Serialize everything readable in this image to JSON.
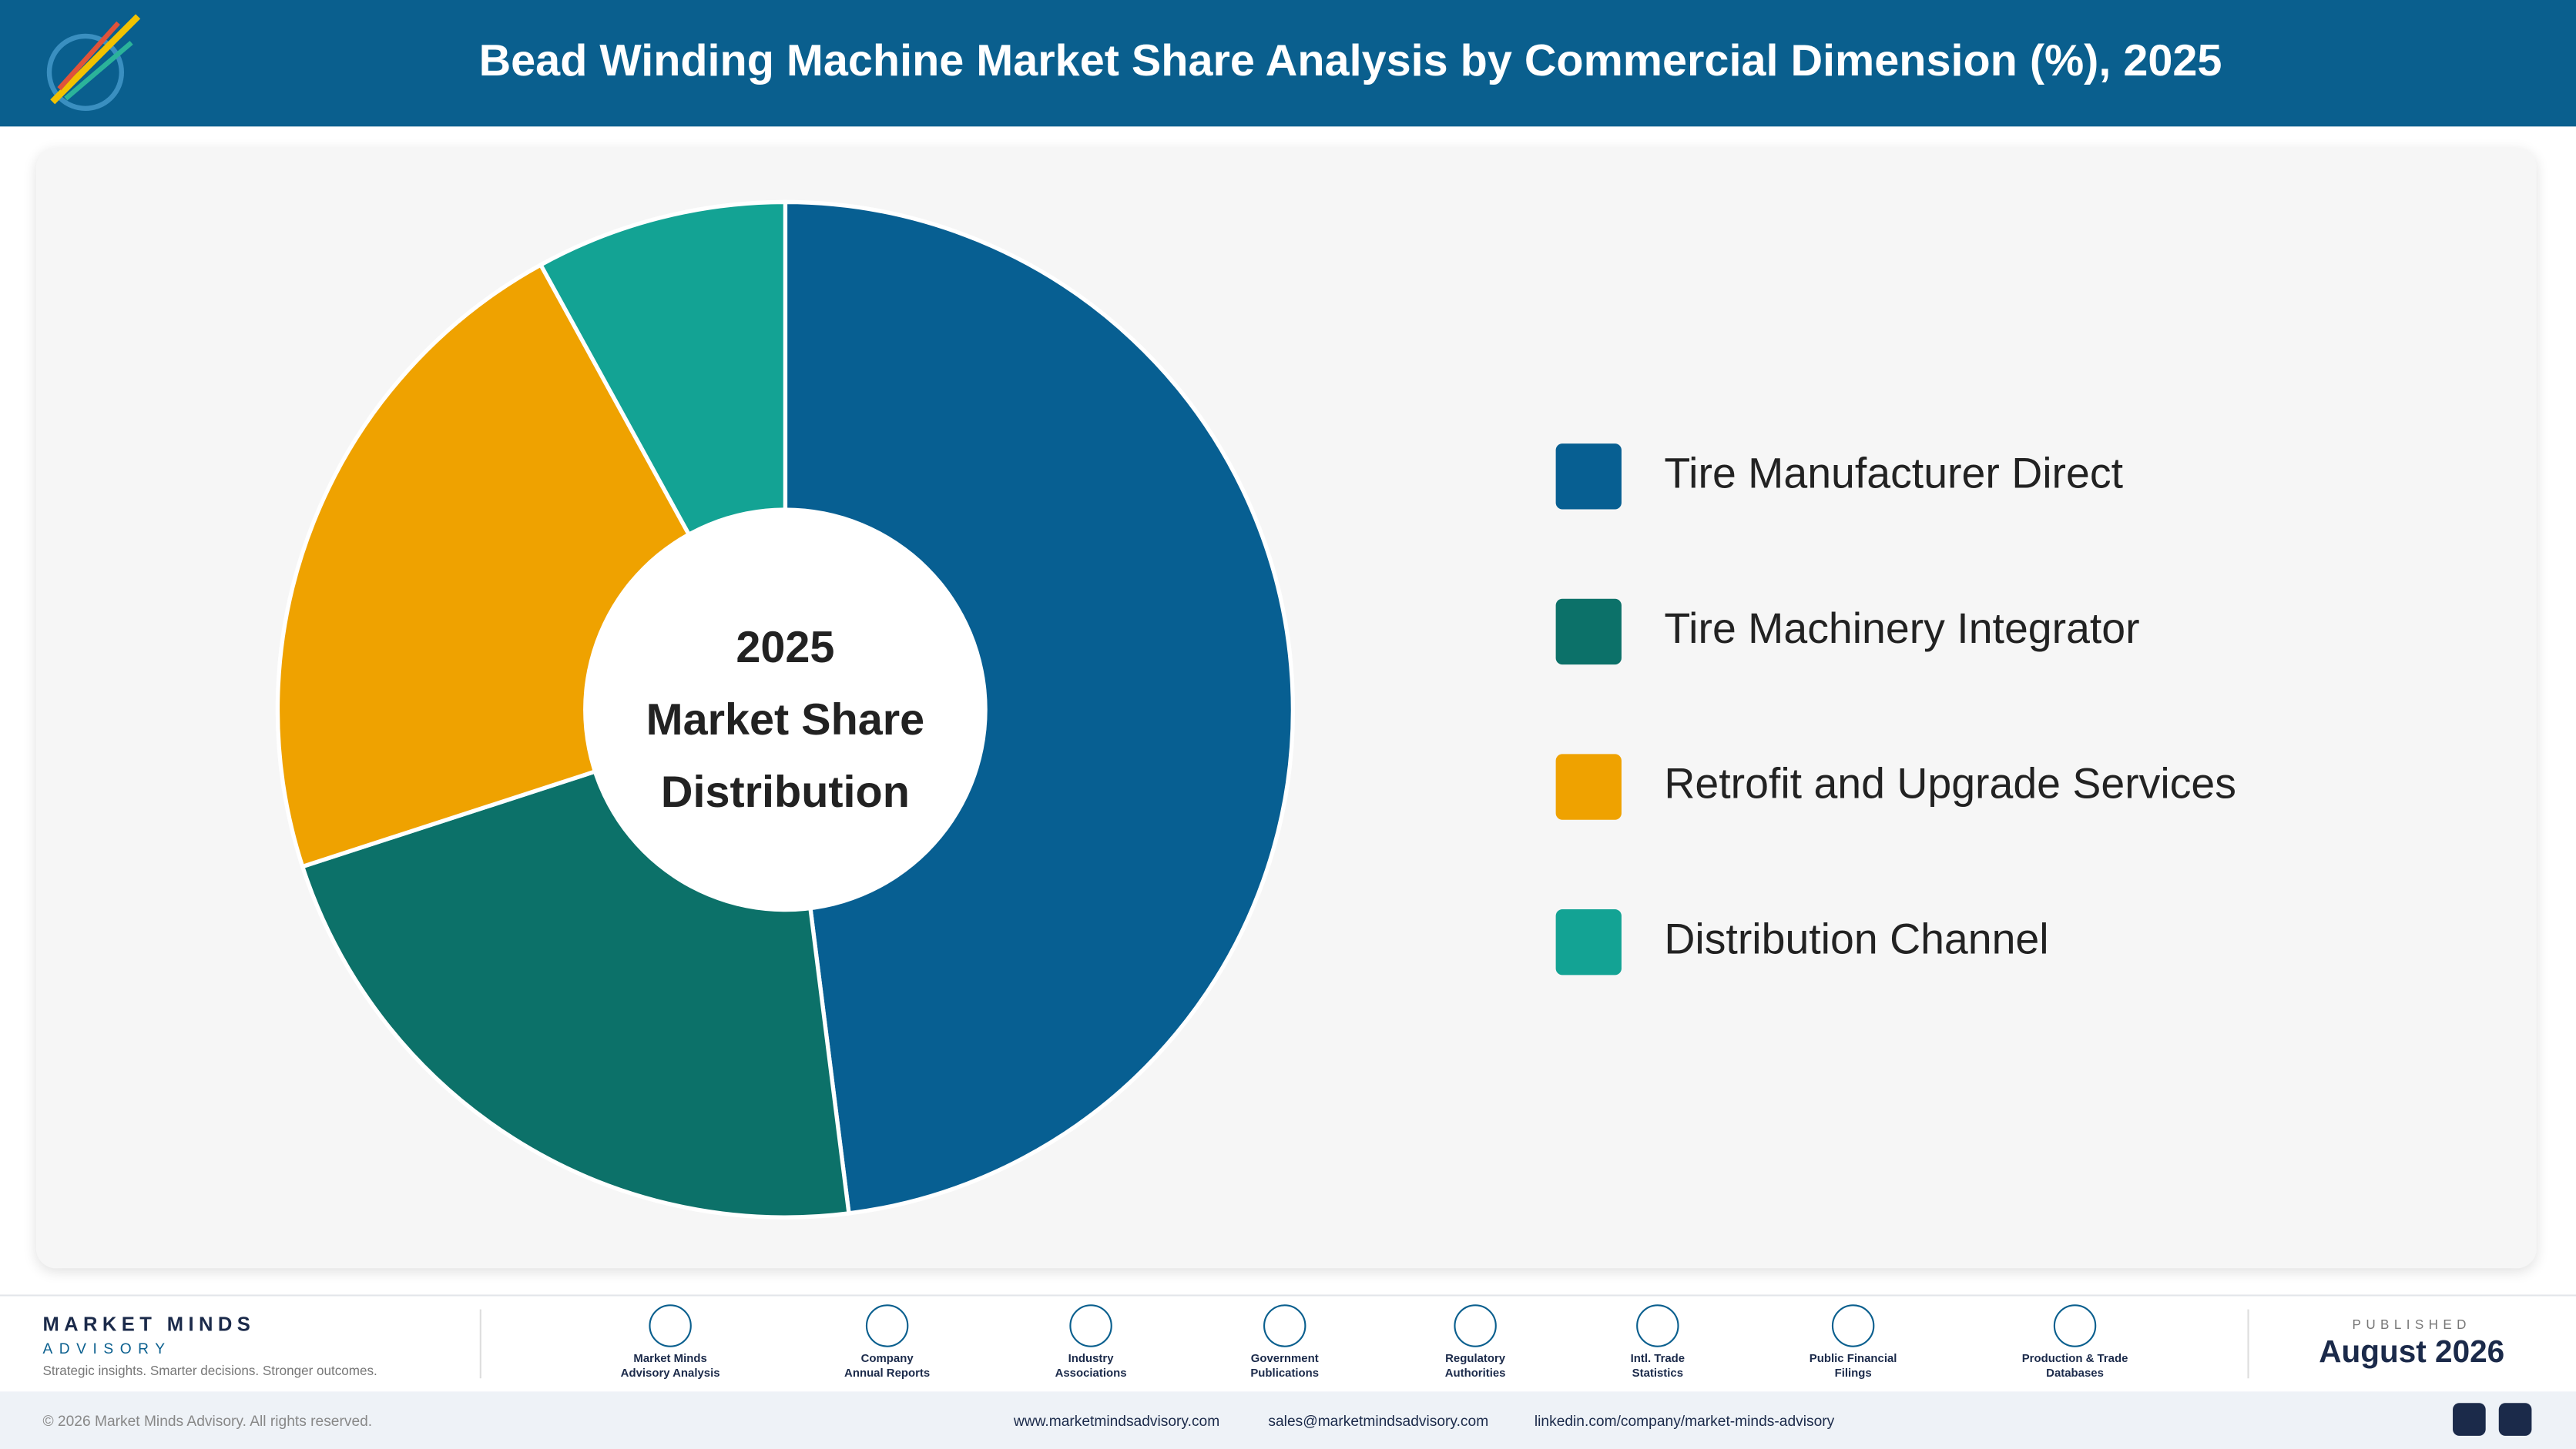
{
  "header": {
    "title": "Bead Winding Machine Market Share Analysis by Commercial Dimension (%), 2025"
  },
  "chart_data": {
    "type": "pie",
    "center_text": [
      "2025",
      "Market Share",
      "Distribution"
    ],
    "categories": [
      "Tire Manufacturer Direct",
      "Tire Machinery Integrator",
      "Retrofit and Upgrade Services",
      "Distribution Channel"
    ],
    "values": [
      48,
      22,
      22,
      8
    ],
    "colors": [
      "#075f92",
      "#0c7169",
      "#efa200",
      "#13a394"
    ]
  },
  "footer": {
    "brand": "MARKET MINDS",
    "brand_sub": "ADVISORY",
    "tagline": "Strategic insights. Smarter decisions. Stronger outcomes.",
    "sources": [
      [
        "Market Minds",
        "Advisory Analysis"
      ],
      [
        "Company",
        "Annual Reports"
      ],
      [
        "Industry",
        "Associations"
      ],
      [
        "Government",
        "Publications"
      ],
      [
        "Regulatory",
        "Authorities"
      ],
      [
        "Intl. Trade",
        "Statistics"
      ],
      [
        "Public Financial",
        "Filings"
      ],
      [
        "Production & Trade",
        "Databases"
      ]
    ],
    "published_label": "PUBLISHED",
    "published_date": "August 2026",
    "copyright": "© 2026 Market Minds Advisory. All rights reserved.",
    "website": "www.marketmindsadvisory.com",
    "email": "sales@marketmindsadvisory.com",
    "linkedin": "linkedin.com/company/market-minds-advisory"
  }
}
